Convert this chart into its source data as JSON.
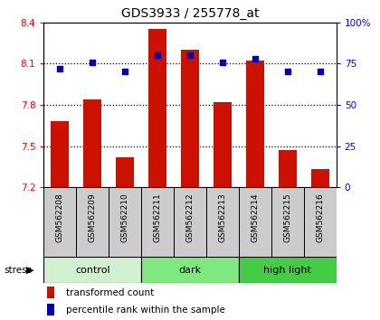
{
  "title": "GDS3933 / 255778_at",
  "samples": [
    "GSM562208",
    "GSM562209",
    "GSM562210",
    "GSM562211",
    "GSM562212",
    "GSM562213",
    "GSM562214",
    "GSM562215",
    "GSM562216"
  ],
  "bar_values": [
    7.68,
    7.84,
    7.42,
    8.35,
    8.2,
    7.82,
    8.12,
    7.47,
    7.33
  ],
  "percentile_values": [
    72,
    76,
    70,
    80,
    80,
    76,
    78,
    70,
    70
  ],
  "groups": [
    {
      "label": "control",
      "start": 0,
      "end": 3,
      "color": "#d0f0d0"
    },
    {
      "label": "dark",
      "start": 3,
      "end": 6,
      "color": "#80e880"
    },
    {
      "label": "high light",
      "start": 6,
      "end": 9,
      "color": "#44cc44"
    }
  ],
  "ylim_left": [
    7.2,
    8.4
  ],
  "ylim_right": [
    0,
    100
  ],
  "yticks_left": [
    7.2,
    7.5,
    7.8,
    8.1,
    8.4
  ],
  "yticks_right": [
    0,
    25,
    50,
    75,
    100
  ],
  "bar_color": "#cc1100",
  "dot_color": "#0000bb",
  "bar_width": 0.55,
  "stress_label": "stress",
  "legend_bar_label": "transformed count",
  "legend_dot_label": "percentile rank within the sample",
  "sample_label_bg": "#cccccc",
  "dotted_lines": [
    8.1,
    7.8,
    7.5
  ]
}
